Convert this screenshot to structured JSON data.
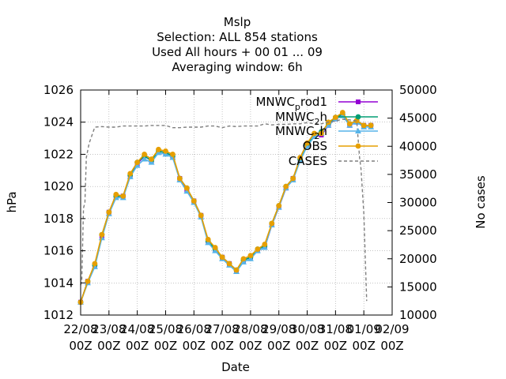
{
  "chart_data": {
    "type": "line",
    "title_lines": [
      "Mslp",
      "Selection: ALL    854 stations",
      "Used  All hours  + 00 01 ... 09",
      "Averaging window:  6h"
    ],
    "xlabel": "Date",
    "ylabel": "hPa",
    "y2label": "No cases",
    "x_tick_labels": [
      [
        "22/08",
        "00Z"
      ],
      [
        "23/08",
        "00Z"
      ],
      [
        "24/08",
        "00Z"
      ],
      [
        "25/08",
        "00Z"
      ],
      [
        "26/08",
        "00Z"
      ],
      [
        "27/08",
        "00Z"
      ],
      [
        "28/08",
        "00Z"
      ],
      [
        "29/08",
        "00Z"
      ],
      [
        "30/08",
        "00Z"
      ],
      [
        "31/08",
        "00Z"
      ],
      [
        "01/09",
        "00Z"
      ],
      [
        "02/09",
        "00Z"
      ]
    ],
    "xlim_days": [
      0,
      11
    ],
    "ylim": [
      1012,
      1026
    ],
    "y_ticks": [
      "1012",
      "1014",
      "1016",
      "1018",
      "1020",
      "1022",
      "1024",
      "1026"
    ],
    "y2lim": [
      10000,
      50000
    ],
    "y2_ticks": [
      "10000",
      "15000",
      "20000",
      "25000",
      "30000",
      "35000",
      "40000",
      "45000",
      "50000"
    ],
    "grid": true,
    "legend_position": "top-right",
    "x_days": [
      0.0,
      0.25,
      0.5,
      0.75,
      1.0,
      1.25,
      1.5,
      1.75,
      2.0,
      2.25,
      2.5,
      2.75,
      3.0,
      3.25,
      3.5,
      3.75,
      4.0,
      4.25,
      4.5,
      4.75,
      5.0,
      5.25,
      5.5,
      5.75,
      6.0,
      6.25,
      6.5,
      6.75,
      7.0,
      7.25,
      7.5,
      7.75,
      8.0,
      8.25,
      8.5,
      8.75,
      9.0,
      9.25,
      9.5,
      9.75,
      10.0,
      10.25
    ],
    "series": [
      {
        "name": "MNWC_prod1",
        "legend_main": "MNWC",
        "legend_sub": "p",
        "legend_rest": "rod1",
        "color": "#9400d3",
        "marker": "square",
        "axis": "y",
        "values": [
          1012.8,
          1014.1,
          1015.1,
          1016.9,
          1018.4,
          1019.4,
          1019.4,
          1020.7,
          1021.4,
          1021.9,
          1021.6,
          1022.2,
          1022.1,
          1021.9,
          1020.5,
          1019.8,
          1019.1,
          1018.2,
          1016.6,
          1016.1,
          1015.6,
          1015.2,
          1014.8,
          1015.4,
          1015.6,
          1016.0,
          1016.2,
          1017.6,
          1018.7,
          1019.9,
          1020.5,
          1021.7,
          1022.6,
          1023.1,
          1023.2,
          1023.8,
          1024.2,
          1024.5,
          1023.8,
          1024.0,
          1023.8,
          1023.8
        ]
      },
      {
        "name": "MNWC_2h",
        "legend_main": "MNWC",
        "legend_sub": "2",
        "legend_rest": "h",
        "color": "#009e73",
        "marker": "circle",
        "axis": "y",
        "values": [
          1012.8,
          1014.1,
          1015.1,
          1017.0,
          1018.4,
          1019.4,
          1019.4,
          1020.7,
          1021.5,
          1021.9,
          1021.6,
          1022.2,
          1022.1,
          1021.9,
          1020.5,
          1019.9,
          1019.1,
          1018.2,
          1016.6,
          1016.1,
          1015.6,
          1015.2,
          1014.8,
          1015.4,
          1015.6,
          1016.1,
          1016.3,
          1017.7,
          1018.8,
          1020.0,
          1020.5,
          1021.7,
          1022.6,
          1023.2,
          1023.4,
          1023.9,
          1024.3,
          1024.5,
          1023.9,
          1024.1,
          1023.8,
          1023.8
        ]
      },
      {
        "name": "MNWC_2h_b",
        "legend_main": "MNWC",
        "legend_sub": "2",
        "legend_rest": "h",
        "color": "#56b4e9",
        "marker": "triangle",
        "axis": "y",
        "values": [
          1012.8,
          1014.0,
          1015.0,
          1016.8,
          1018.3,
          1019.3,
          1019.3,
          1020.6,
          1021.3,
          1021.7,
          1021.5,
          1022.1,
          1022.0,
          1021.8,
          1020.4,
          1019.7,
          1019.0,
          1018.1,
          1016.5,
          1016.0,
          1015.5,
          1015.1,
          1014.7,
          1015.3,
          1015.5,
          1016.0,
          1016.2,
          1017.6,
          1018.7,
          1019.9,
          1020.4,
          1021.6,
          1022.5,
          1023.1,
          1023.3,
          1023.8,
          1024.2,
          1024.4,
          1023.8,
          1024.0,
          1023.7,
          1023.7
        ]
      },
      {
        "name": "OBS",
        "legend_main": "OBS",
        "legend_sub": "",
        "legend_rest": "",
        "color": "#e69f00",
        "marker": "circle",
        "axis": "y",
        "values": [
          1012.8,
          1014.1,
          1015.2,
          1017.0,
          1018.4,
          1019.5,
          1019.4,
          1020.8,
          1021.5,
          1022.0,
          1021.7,
          1022.3,
          1022.2,
          1022.0,
          1020.5,
          1019.9,
          1019.1,
          1018.2,
          1016.7,
          1016.2,
          1015.6,
          1015.2,
          1014.8,
          1015.5,
          1015.7,
          1016.1,
          1016.4,
          1017.7,
          1018.8,
          1020.0,
          1020.5,
          1021.8,
          1022.7,
          1023.3,
          1023.3,
          1024.0,
          1024.3,
          1024.6,
          1023.9,
          1024.1,
          1023.8,
          1023.8
        ]
      },
      {
        "name": "CASES",
        "legend_main": "CASES",
        "legend_sub": "",
        "legend_rest": "",
        "color": "#7f7f7f",
        "marker": "none",
        "dash": true,
        "axis": "y2",
        "x_days": [
          0.0,
          0.04,
          0.1,
          0.15,
          0.2,
          0.3,
          0.5,
          0.75,
          1.0,
          1.25,
          1.5,
          1.75,
          2.0,
          2.25,
          2.5,
          2.75,
          3.0,
          3.25,
          3.5,
          3.75,
          4.0,
          4.25,
          4.5,
          4.75,
          5.0,
          5.25,
          5.5,
          5.75,
          6.0,
          6.25,
          6.5,
          6.75,
          7.0,
          7.25,
          7.5,
          7.75,
          8.0,
          8.25,
          8.5,
          8.75,
          9.0,
          9.25,
          9.5,
          9.75,
          9.85,
          9.9,
          10.0,
          10.1
        ],
        "values": [
          15300,
          16000,
          29000,
          30000,
          38000,
          40500,
          43400,
          43500,
          43400,
          43400,
          43600,
          43600,
          43600,
          43600,
          43700,
          43700,
          43700,
          43300,
          43300,
          43400,
          43400,
          43400,
          43600,
          43600,
          43300,
          43600,
          43500,
          43600,
          43600,
          43600,
          44000,
          43800,
          43900,
          43900,
          44000,
          44000,
          44200,
          44000,
          44000,
          44300,
          44500,
          44800,
          44700,
          44500,
          38000,
          36000,
          28000,
          12500
        ]
      }
    ]
  }
}
